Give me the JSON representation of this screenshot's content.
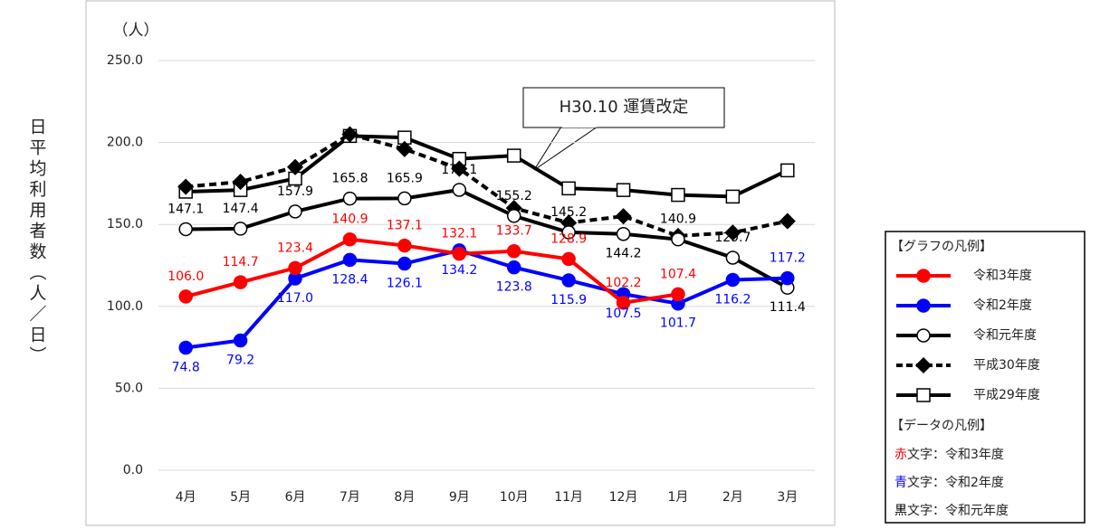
{
  "chart_data": {
    "type": "line",
    "unit_label": "（人）",
    "y_axis_label": "日平均利用者数（人／日）",
    "annotation": "H30.10 運賃改定",
    "categories": [
      "4月",
      "5月",
      "6月",
      "7月",
      "8月",
      "9月",
      "10月",
      "11月",
      "12月",
      "1月",
      "2月",
      "3月"
    ],
    "ylim": [
      0,
      250
    ],
    "yticks": [
      {
        "value": 0,
        "label": "0.0"
      },
      {
        "value": 50,
        "label": "50.0"
      },
      {
        "value": 100,
        "label": "100.0"
      },
      {
        "value": 150,
        "label": "150.0"
      },
      {
        "value": 200,
        "label": "200.0"
      },
      {
        "value": 250,
        "label": "250.0"
      }
    ],
    "grid": true,
    "legend_title": "【グラフの凡例】",
    "series": [
      {
        "name": "令和3年度",
        "color": "#ff0000",
        "marker": "circle",
        "marker_fill": "#ff0000",
        "dashed": false,
        "values": [
          106.0,
          114.7,
          123.4,
          140.9,
          137.1,
          132.1,
          133.7,
          128.9,
          102.2,
          107.4,
          null,
          null
        ],
        "value_labels": [
          "106.0",
          "114.7",
          "123.4",
          "140.9",
          "137.1",
          "132.1",
          "133.7",
          "128.9",
          "102.2",
          "107.4",
          null,
          null
        ]
      },
      {
        "name": "令和2年度",
        "color": "#0000ff",
        "marker": "circle",
        "marker_fill": "#0000ff",
        "dashed": false,
        "values": [
          74.8,
          79.2,
          117.0,
          128.4,
          126.1,
          134.2,
          123.8,
          115.9,
          107.5,
          101.7,
          116.2,
          117.2
        ],
        "value_labels": [
          "74.8",
          "79.2",
          "117.0",
          "128.4",
          "126.1",
          "134.2",
          "123.8",
          "115.9",
          "107.5",
          "101.7",
          "116.2",
          "117.2"
        ]
      },
      {
        "name": "令和元年度",
        "color": "#000000",
        "marker": "circle",
        "marker_fill": "#ffffff",
        "dashed": false,
        "values": [
          147.1,
          147.4,
          157.9,
          165.8,
          165.9,
          171.1,
          155.2,
          145.2,
          144.2,
          140.9,
          129.7,
          111.4
        ],
        "value_labels": [
          "147.1",
          "147.4",
          "157.9",
          "165.8",
          "165.9",
          "171.1",
          "155.2",
          "145.2",
          "144.2",
          "140.9",
          "129.7",
          "111.4"
        ]
      },
      {
        "name": "平成30年度",
        "color": "#000000",
        "marker": "diamond",
        "marker_fill": "#000000",
        "dashed": true,
        "values": [
          173,
          176,
          185,
          205,
          196,
          184,
          160,
          151,
          155,
          143,
          145,
          152
        ]
      },
      {
        "name": "平成29年度",
        "color": "#000000",
        "marker": "square",
        "marker_fill": "#ffffff",
        "dashed": false,
        "values": [
          170,
          171,
          178,
          204,
          203,
          190,
          192,
          172,
          171,
          168,
          167,
          183
        ]
      }
    ],
    "data_legend": {
      "title": "【データの凡例】",
      "items": [
        {
          "key": "赤",
          "text": "文字：令和3年度",
          "color": "#ff0000"
        },
        {
          "key": "青",
          "text": "文字：令和2年度",
          "color": "#0000ff"
        },
        {
          "key": "黒",
          "text": "文字：令和元年度",
          "color": "#000000"
        }
      ]
    }
  }
}
